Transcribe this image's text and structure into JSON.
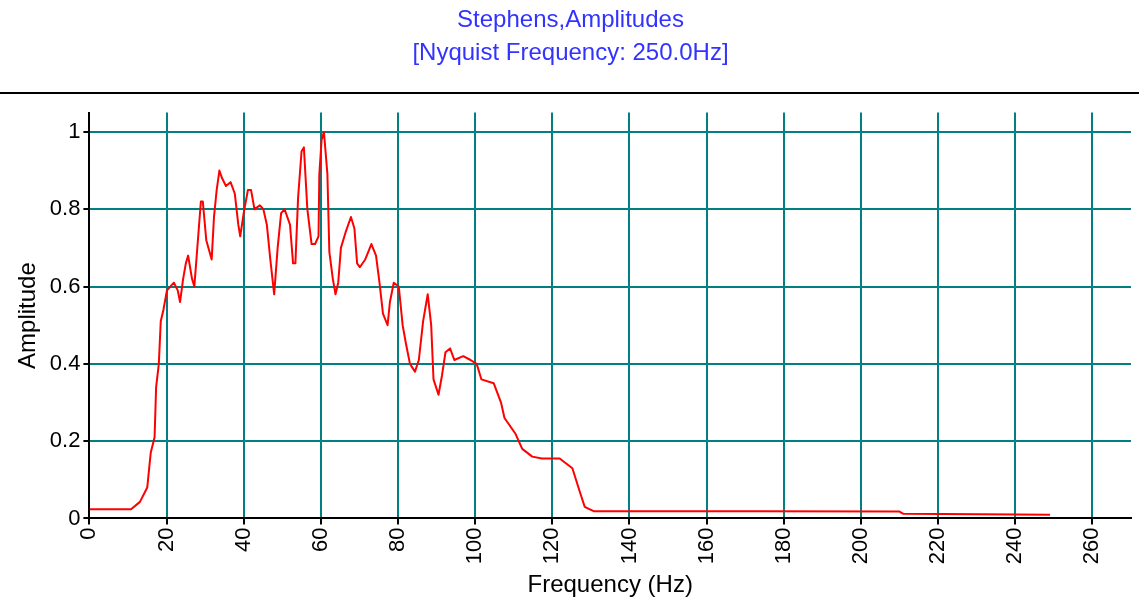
{
  "chart_data": {
    "type": "line",
    "title": "Stephens,Amplitudes",
    "subtitle": "[Nyquist Frequency: 250.0Hz]",
    "xlabel": "Frequency (Hz)",
    "ylabel": "Amplitude",
    "xlim": [
      0,
      270
    ],
    "xticks": [
      0,
      20,
      40,
      60,
      80,
      100,
      120,
      140,
      160,
      180,
      200,
      220,
      240,
      260
    ],
    "ylim": [
      0,
      1.05
    ],
    "yticks": [
      0,
      0.2,
      0.4,
      0.6,
      0.8,
      1
    ],
    "grid": true,
    "legend": false,
    "marker": "none",
    "line_style": "solid",
    "series": [
      {
        "color": "#ff0000",
        "x": [
          0,
          10.8,
          13.1,
          15,
          15.9,
          16.9,
          17.3,
          18,
          18.5,
          19.2,
          20.1,
          21.9,
          22.9,
          23.5,
          24.3,
          25,
          25.6,
          26.6,
          27.2,
          27.9,
          28.9,
          29.4,
          30.3,
          31.7,
          32.3,
          33,
          33.7,
          34.4,
          35.4,
          36.6,
          37.7,
          38.6,
          39.1,
          40,
          41.1,
          41.9,
          42.8,
          44.2,
          45.1,
          46,
          46.9,
          47.9,
          48.8,
          49.7,
          50.6,
          52,
          52.8,
          53.4,
          54.1,
          55,
          55.6,
          56.5,
          57.6,
          58.5,
          59.4,
          59.6,
          60.2,
          60.8,
          61.7,
          62.2,
          63.1,
          63.8,
          64.5,
          65.2,
          66.4,
          67.8,
          68.7,
          69.4,
          70.1,
          71.5,
          73.1,
          74.3,
          75.2,
          76.1,
          77.3,
          77.9,
          78.9,
          80.2,
          81.2,
          82.1,
          83.1,
          84.4,
          85.4,
          86.5,
          87.7,
          88.6,
          89.2,
          90.5,
          91.4,
          92.3,
          93.5,
          94.6,
          96.9,
          98.8,
          100.4,
          101.6,
          104.8,
          106.7,
          107.6,
          110.4,
          112.2,
          114.8,
          117.3,
          121.9,
          125.2,
          127.1,
          128.4,
          130.7,
          210,
          211,
          249
        ],
        "values": [
          0.024,
          0.024,
          0.043,
          0.08,
          0.17,
          0.21,
          0.34,
          0.4,
          0.51,
          0.54,
          0.59,
          0.61,
          0.59,
          0.56,
          0.62,
          0.66,
          0.68,
          0.62,
          0.6,
          0.69,
          0.82,
          0.82,
          0.72,
          0.67,
          0.78,
          0.85,
          0.9,
          0.88,
          0.86,
          0.87,
          0.84,
          0.76,
          0.73,
          0.79,
          0.85,
          0.85,
          0.8,
          0.81,
          0.8,
          0.76,
          0.67,
          0.58,
          0.7,
          0.79,
          0.8,
          0.76,
          0.66,
          0.66,
          0.83,
          0.95,
          0.96,
          0.8,
          0.71,
          0.71,
          0.73,
          0.89,
          0.98,
          1.0,
          0.89,
          0.69,
          0.62,
          0.58,
          0.61,
          0.7,
          0.74,
          0.78,
          0.75,
          0.66,
          0.65,
          0.67,
          0.71,
          0.68,
          0.61,
          0.53,
          0.5,
          0.56,
          0.61,
          0.6,
          0.5,
          0.45,
          0.4,
          0.38,
          0.41,
          0.51,
          0.58,
          0.5,
          0.36,
          0.32,
          0.37,
          0.43,
          0.44,
          0.41,
          0.42,
          0.41,
          0.4,
          0.36,
          0.35,
          0.3,
          0.26,
          0.22,
          0.18,
          0.16,
          0.155,
          0.155,
          0.13,
          0.07,
          0.03,
          0.019,
          0.018,
          0.012,
          0.01
        ]
      }
    ]
  }
}
